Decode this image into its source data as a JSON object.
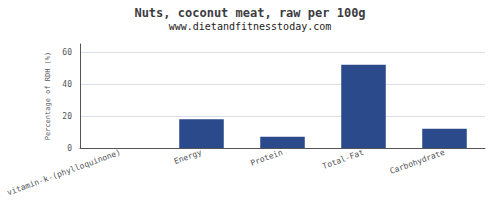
{
  "chart_data": {
    "type": "bar",
    "title": "Nuts, coconut meat, raw per 100g",
    "subtitle": "www.dietandfitnesstoday.com",
    "categories": [
      "vitamin-k-(phylloquinone)",
      "Energy",
      "Protein",
      "Total-Fat",
      "Carbohydrate"
    ],
    "values": [
      0,
      18,
      7,
      52,
      12
    ],
    "color": "#2b4a8b",
    "ylabel": "Percentage of RDH (%)",
    "ylim": [
      0,
      65
    ],
    "yticks": [
      0,
      20,
      40,
      60
    ],
    "grid": true
  }
}
